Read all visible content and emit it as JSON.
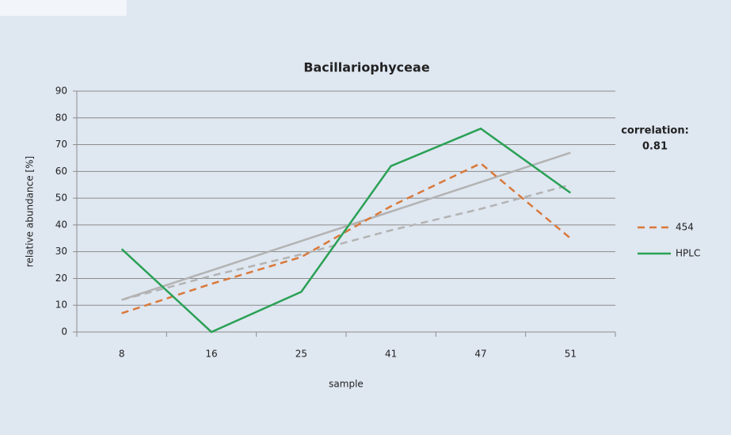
{
  "chart_data": {
    "type": "line",
    "title": "Bacillariophyceae",
    "x_label": "sample",
    "y_label": "relative abundance [%]",
    "annotation": [
      "correlation:",
      "0.81"
    ],
    "categories": [
      "8",
      "16",
      "25",
      "41",
      "47",
      "51"
    ],
    "series": [
      {
        "name": "454",
        "color": "#d9793a",
        "dashed": true,
        "values": [
          7,
          18,
          28,
          47,
          63,
          35
        ],
        "trend": [
          12,
          21,
          29,
          38,
          46,
          55
        ],
        "trend_color": "#b3b3b3"
      },
      {
        "name": "HPLC",
        "color": "#2aa155",
        "dashed": false,
        "values": [
          31,
          0,
          15,
          62,
          76,
          52
        ],
        "trend": [
          12,
          23,
          34,
          45,
          56,
          67
        ],
        "trend_color": "#b3b3b3"
      }
    ],
    "ylim": [
      0,
      90
    ],
    "yticks": [
      0,
      10,
      20,
      30,
      40,
      50,
      60,
      70,
      80,
      90
    ],
    "grid": true,
    "legend": "right"
  }
}
